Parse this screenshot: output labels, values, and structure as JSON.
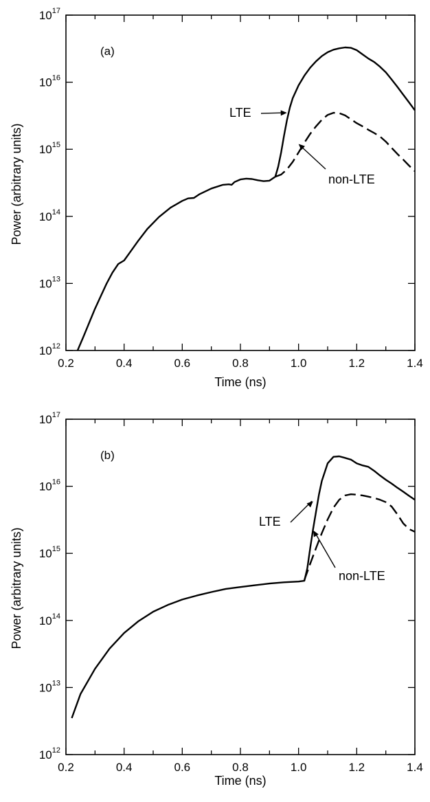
{
  "chart_data": [
    {
      "type": "line",
      "panel_label": "(a)",
      "xlabel": "Time (ns)",
      "ylabel": "Power (arbitrary units)",
      "xlim": [
        0.2,
        1.4
      ],
      "ylim": [
        1000000000000.0,
        1e+17
      ],
      "y_scale": "log",
      "x_ticks": [
        0.2,
        0.4,
        0.6,
        0.8,
        1.0,
        1.2,
        1.4
      ],
      "x_tick_labels": [
        "0.2",
        "0.4",
        "0.6",
        "0.8",
        "1.0",
        "1.2",
        "1.4"
      ],
      "y_ticks": [
        1000000000000.0,
        10000000000000.0,
        100000000000000.0,
        1000000000000000.0,
        1e+16,
        1e+17
      ],
      "y_tick_labels": [
        {
          "base": "10",
          "exp": "12"
        },
        {
          "base": "10",
          "exp": "13"
        },
        {
          "base": "10",
          "exp": "14"
        },
        {
          "base": "10",
          "exp": "15"
        },
        {
          "base": "10",
          "exp": "16"
        },
        {
          "base": "10",
          "exp": "17"
        }
      ],
      "series": [
        {
          "name": "LTE",
          "style": "solid",
          "x": [
            0.24,
            0.26,
            0.28,
            0.3,
            0.32,
            0.34,
            0.36,
            0.38,
            0.4,
            0.42,
            0.45,
            0.48,
            0.52,
            0.56,
            0.6,
            0.62,
            0.64,
            0.66,
            0.7,
            0.74,
            0.76,
            0.77,
            0.78,
            0.8,
            0.82,
            0.84,
            0.86,
            0.88,
            0.9,
            0.92,
            0.93,
            0.94,
            0.95,
            0.96,
            0.97,
            0.98,
            1.0,
            1.02,
            1.04,
            1.06,
            1.08,
            1.1,
            1.12,
            1.14,
            1.16,
            1.18,
            1.2,
            1.22,
            1.24,
            1.26,
            1.28,
            1.3,
            1.32,
            1.34,
            1.36,
            1.38,
            1.4
          ],
          "y": [
            1000000000000.0,
            1600000000000.0,
            2600000000000.0,
            4200000000000.0,
            6500000000000.0,
            10000000000000.0,
            14500000000000.0,
            19500000000000.0,
            22000000000000.0,
            29000000000000.0,
            44000000000000.0,
            65000000000000.0,
            98000000000000.0,
            135000000000000.0,
            170000000000000.0,
            185000000000000.0,
            188000000000000.0,
            215000000000000.0,
            260000000000000.0,
            295000000000000.0,
            300000000000000.0,
            295000000000000.0,
            325000000000000.0,
            355000000000000.0,
            365000000000000.0,
            360000000000000.0,
            345000000000000.0,
            335000000000000.0,
            340000000000000.0,
            390000000000000.0,
            550000000000000.0,
            900000000000000.0,
            1600000000000000.0,
            2700000000000000.0,
            4200000000000000.0,
            5800000000000000.0,
            9000000000000000.0,
            1.25e+16,
            1.65e+16,
            2.05e+16,
            2.45e+16,
            2.8e+16,
            3.05e+16,
            3.2e+16,
            3.3e+16,
            3.25e+16,
            3e+16,
            2.6e+16,
            2.25e+16,
            2e+16,
            1.7e+16,
            1.4e+16,
            1.1e+16,
            8500000000000000.0,
            6500000000000000.0,
            5000000000000000.0,
            3800000000000000.0
          ]
        },
        {
          "name": "non-LTE",
          "style": "dashed",
          "x": [
            0.92,
            0.94,
            0.96,
            0.98,
            1.0,
            1.02,
            1.04,
            1.06,
            1.08,
            1.1,
            1.12,
            1.14,
            1.16,
            1.18,
            1.2,
            1.22,
            1.24,
            1.26,
            1.28,
            1.3,
            1.32,
            1.34,
            1.36,
            1.38,
            1.4
          ],
          "y": [
            390000000000000.0,
            420000000000000.0,
            500000000000000.0,
            650000000000000.0,
            900000000000000.0,
            1250000000000000.0,
            1700000000000000.0,
            2200000000000000.0,
            2750000000000000.0,
            3250000000000000.0,
            3500000000000000.0,
            3450000000000000.0,
            3200000000000000.0,
            2800000000000000.0,
            2450000000000000.0,
            2200000000000000.0,
            1950000000000000.0,
            1750000000000000.0,
            1550000000000000.0,
            1300000000000000.0,
            1050000000000000.0,
            850000000000000.0,
            700000000000000.0,
            570000000000000.0,
            470000000000000.0
          ]
        }
      ],
      "annotations": [
        {
          "text": "LTE",
          "target_series": "LTE",
          "x": 0.96,
          "y": 3500000000000000.0
        },
        {
          "text": "non-LTE",
          "target_series": "non-LTE",
          "x": 1.0,
          "y": 1200000000000000.0
        }
      ]
    },
    {
      "type": "line",
      "panel_label": "(b)",
      "xlabel": "Time (ns)",
      "ylabel": "Power (arbitrary units)",
      "xlim": [
        0.2,
        1.4
      ],
      "ylim": [
        1000000000000.0,
        1e+17
      ],
      "y_scale": "log",
      "x_ticks": [
        0.2,
        0.4,
        0.6,
        0.8,
        1.0,
        1.2,
        1.4
      ],
      "x_tick_labels": [
        "0.2",
        "0.4",
        "0.6",
        "0.8",
        "1.0",
        "1.2",
        "1.4"
      ],
      "y_ticks": [
        1000000000000.0,
        10000000000000.0,
        100000000000000.0,
        1000000000000000.0,
        1e+16,
        1e+17
      ],
      "y_tick_labels": [
        {
          "base": "10",
          "exp": "12"
        },
        {
          "base": "10",
          "exp": "13"
        },
        {
          "base": "10",
          "exp": "14"
        },
        {
          "base": "10",
          "exp": "15"
        },
        {
          "base": "10",
          "exp": "16"
        },
        {
          "base": "10",
          "exp": "17"
        }
      ],
      "series": [
        {
          "name": "LTE",
          "style": "solid",
          "x": [
            0.22,
            0.25,
            0.3,
            0.35,
            0.4,
            0.45,
            0.5,
            0.55,
            0.6,
            0.65,
            0.7,
            0.75,
            0.8,
            0.85,
            0.9,
            0.95,
            1.0,
            1.02,
            1.03,
            1.04,
            1.05,
            1.06,
            1.07,
            1.08,
            1.1,
            1.12,
            1.14,
            1.16,
            1.18,
            1.2,
            1.22,
            1.24,
            1.26,
            1.28,
            1.3,
            1.32,
            1.34,
            1.36,
            1.38,
            1.4
          ],
          "y": [
            3500000000000.0,
            8000000000000.0,
            19000000000000.0,
            38000000000000.0,
            65000000000000.0,
            98000000000000.0,
            135000000000000.0,
            170000000000000.0,
            205000000000000.0,
            235000000000000.0,
            265000000000000.0,
            295000000000000.0,
            315000000000000.0,
            335000000000000.0,
            355000000000000.0,
            370000000000000.0,
            380000000000000.0,
            390000000000000.0,
            600000000000000.0,
            1200000000000000.0,
            2300000000000000.0,
            4200000000000000.0,
            7500000000000000.0,
            1.2e+16,
            2.2e+16,
            2.75e+16,
            2.8e+16,
            2.65e+16,
            2.5e+16,
            2.2e+16,
            2.05e+16,
            1.95e+16,
            1.7e+16,
            1.45e+16,
            1.25e+16,
            1.1e+16,
            9500000000000000.0,
            8300000000000000.0,
            7200000000000000.0,
            6300000000000000.0
          ]
        },
        {
          "name": "non-LTE",
          "style": "dashed",
          "x": [
            1.02,
            1.04,
            1.06,
            1.08,
            1.1,
            1.12,
            1.14,
            1.16,
            1.18,
            1.2,
            1.22,
            1.24,
            1.26,
            1.28,
            1.3,
            1.32,
            1.34,
            1.36,
            1.38,
            1.4
          ],
          "y": [
            400000000000000.0,
            700000000000000.0,
            1200000000000000.0,
            2000000000000000.0,
            3200000000000000.0,
            4800000000000000.0,
            6300000000000000.0,
            7300000000000000.0,
            7600000000000000.0,
            7500000000000000.0,
            7300000000000000.0,
            7000000000000000.0,
            6700000000000000.0,
            6300000000000000.0,
            5800000000000000.0,
            5000000000000000.0,
            3800000000000000.0,
            2800000000000000.0,
            2300000000000000.0,
            2100000000000000.0
          ]
        }
      ],
      "annotations": [
        {
          "text": "LTE",
          "target_series": "LTE",
          "x": 1.05,
          "y": 6000000000000000.0
        },
        {
          "text": "non-LTE",
          "target_series": "non-LTE",
          "x": 1.05,
          "y": 2200000000000000.0
        }
      ]
    }
  ]
}
